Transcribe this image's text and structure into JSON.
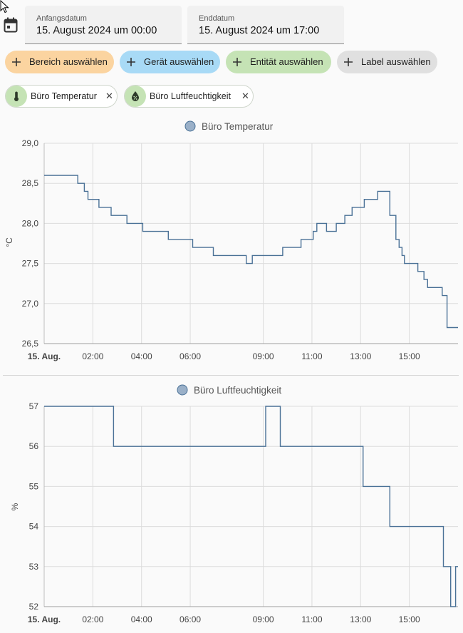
{
  "dates": {
    "start_label": "Anfangsdatum",
    "start_value": "15. August 2024 um 00:00",
    "end_label": "Enddatum",
    "end_value": "15. August 2024 um 17:00"
  },
  "targets": {
    "area": "Bereich auswählen",
    "device": "Gerät auswählen",
    "entity": "Entität auswählen",
    "label": "Label auswählen"
  },
  "chips": [
    {
      "label": "Büro Temperatur",
      "icon": "thermometer-icon"
    },
    {
      "label": "Büro Luftfeuchtigkeit",
      "icon": "water-percent-icon"
    }
  ],
  "colors": {
    "line": "#4a7196",
    "legend_marker": "#9ab0c8",
    "area_pill": "#fbd4a0",
    "device_pill": "#a8daf6",
    "entity_pill": "#c5e3b5",
    "label_pill": "#e0e0e0"
  },
  "chart_data": [
    {
      "type": "line",
      "step": true,
      "series": [
        {
          "name": "Büro Temperatur"
        }
      ],
      "ylabel": "°C",
      "ylim": [
        26.5,
        29.0
      ],
      "yticks": [
        "29,0",
        "28,5",
        "28,0",
        "27,5",
        "27,0",
        "26,5"
      ],
      "xlim": [
        0,
        17
      ],
      "xticks": [
        {
          "h": 0,
          "label": "15. Aug.",
          "bold": true
        },
        {
          "h": 2,
          "label": "02:00"
        },
        {
          "h": 4,
          "label": "04:00"
        },
        {
          "h": 6,
          "label": "06:00"
        },
        {
          "h": 9,
          "label": "09:00"
        },
        {
          "h": 11,
          "label": "11:00"
        },
        {
          "h": 13,
          "label": "13:00"
        },
        {
          "h": 15,
          "label": "15:00"
        }
      ],
      "grid": true,
      "legend": "top-center",
      "x": [
        0,
        1.38,
        1.65,
        1.8,
        2.25,
        2.75,
        3.4,
        4.05,
        5.1,
        6.1,
        6.95,
        8.3,
        8.55,
        9.8,
        10.55,
        11.05,
        11.2,
        11.6,
        12.0,
        12.35,
        12.65,
        13.15,
        13.7,
        14.2,
        14.45,
        14.58,
        14.7,
        14.8,
        14.95,
        15.35,
        15.6,
        15.75,
        16.35,
        16.55,
        17.0
      ],
      "y": [
        28.6,
        28.5,
        28.4,
        28.3,
        28.2,
        28.1,
        28.0,
        27.9,
        27.8,
        27.7,
        27.6,
        27.5,
        27.6,
        27.7,
        27.8,
        27.9,
        28.0,
        27.9,
        28.0,
        28.1,
        28.2,
        28.3,
        28.4,
        28.1,
        27.8,
        27.7,
        27.6,
        27.5,
        27.5,
        27.4,
        27.3,
        27.2,
        27.1,
        26.7,
        26.7
      ]
    },
    {
      "type": "line",
      "step": true,
      "series": [
        {
          "name": "Büro Luftfeuchtigkeit"
        }
      ],
      "ylabel": "%",
      "ylim": [
        52,
        57
      ],
      "yticks": [
        "57",
        "56",
        "55",
        "54",
        "53",
        "52"
      ],
      "xlim": [
        0,
        17
      ],
      "xticks": [
        {
          "h": 0,
          "label": "15. Aug.",
          "bold": true
        },
        {
          "h": 2,
          "label": "02:00"
        },
        {
          "h": 4,
          "label": "04:00"
        },
        {
          "h": 6,
          "label": "06:00"
        },
        {
          "h": 9,
          "label": "09:00"
        },
        {
          "h": 11,
          "label": "11:00"
        },
        {
          "h": 13,
          "label": "13:00"
        },
        {
          "h": 15,
          "label": "15:00"
        }
      ],
      "grid": true,
      "legend": "top-center",
      "x": [
        0,
        2.85,
        9.1,
        9.7,
        13.1,
        14.2,
        16.4,
        16.7,
        16.9,
        17.0
      ],
      "y": [
        57,
        56,
        57,
        56,
        55,
        54,
        53,
        52,
        53,
        53
      ]
    }
  ]
}
